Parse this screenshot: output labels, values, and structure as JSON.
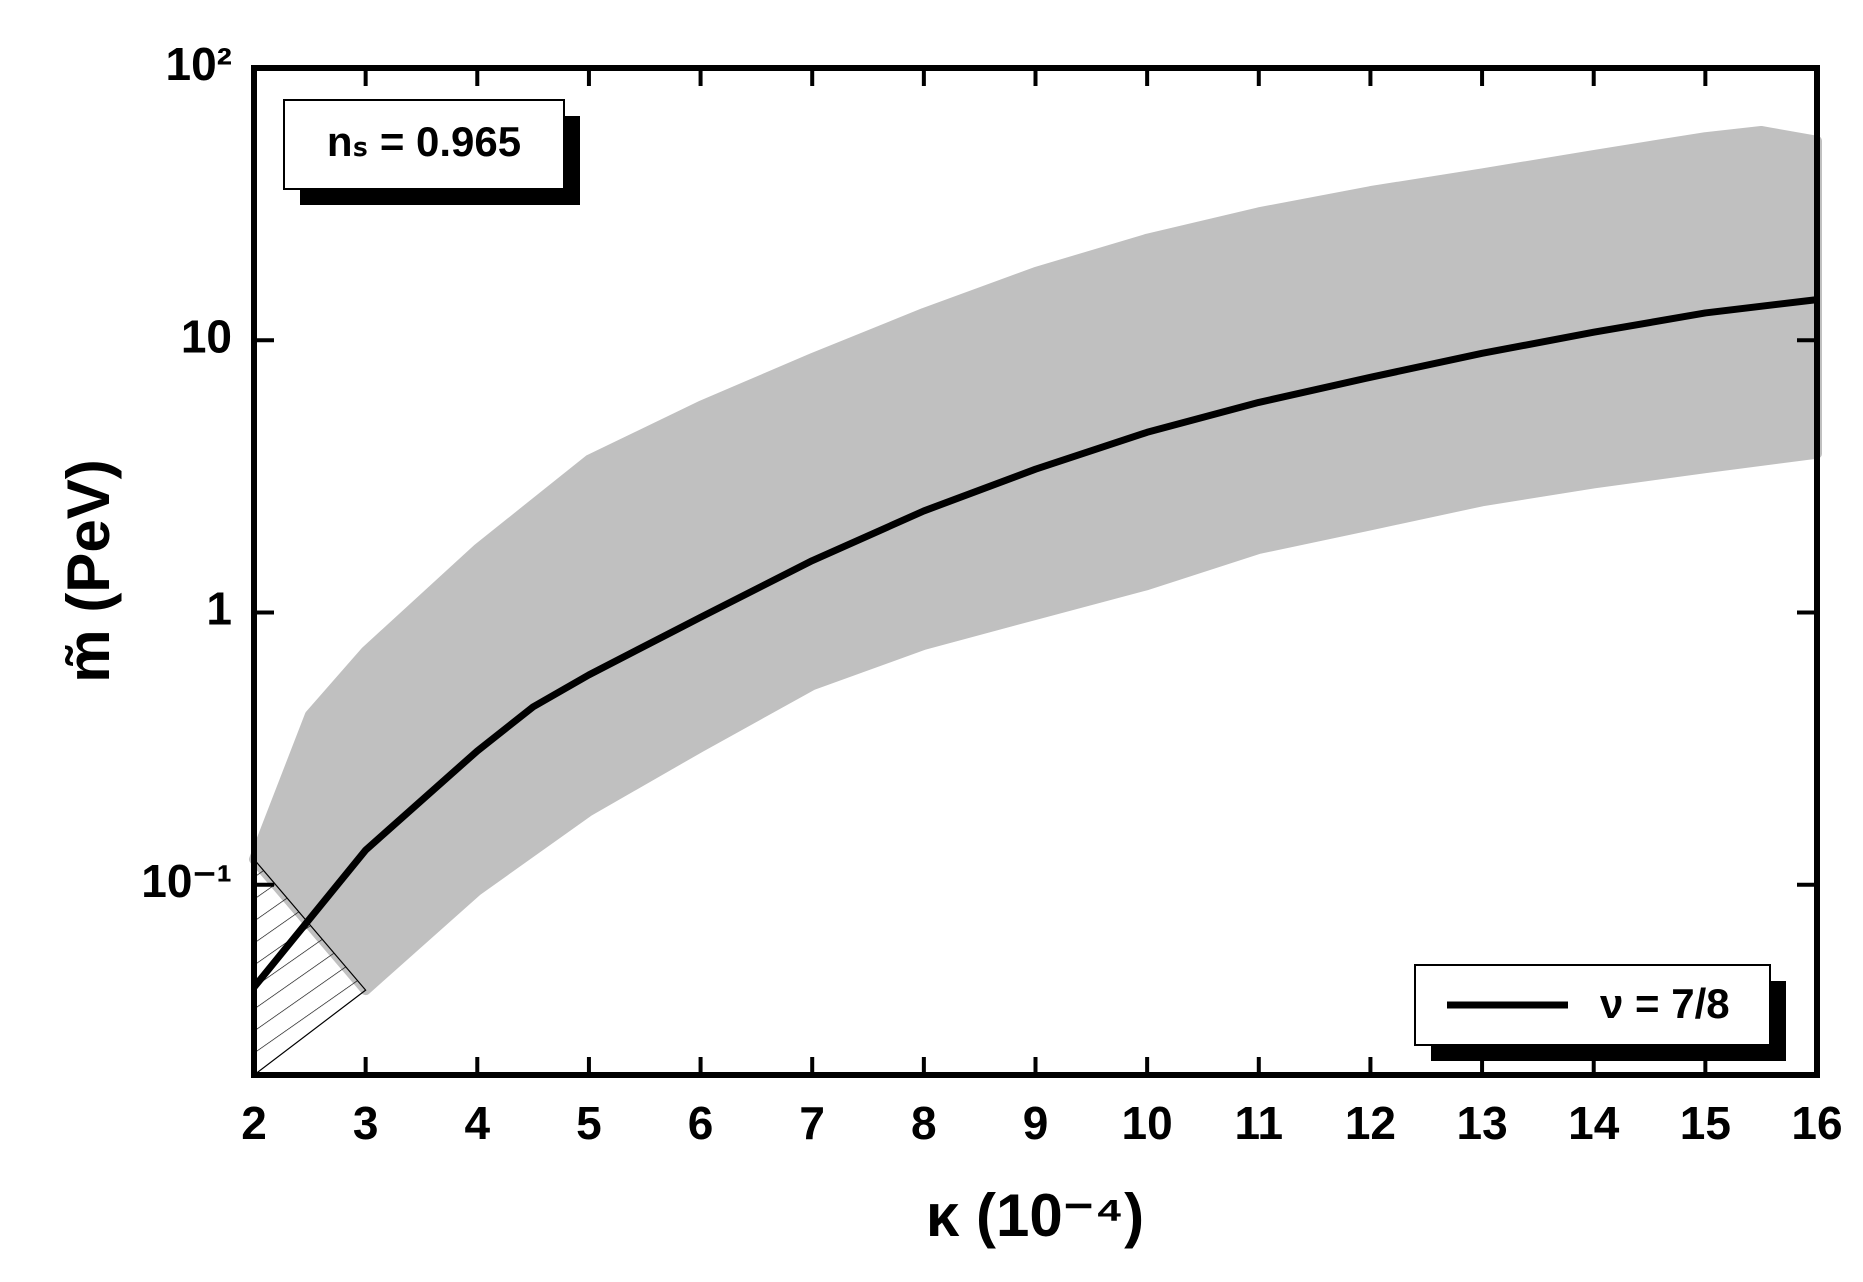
{
  "chart_data": {
    "type": "line",
    "annotation": "nₛ = 0.965",
    "xlabel": "κ (10⁻⁴)",
    "ylabel": "m̃ (PeV)",
    "xlim": [
      2,
      16
    ],
    "xticks": [
      2,
      3,
      4,
      5,
      6,
      7,
      8,
      9,
      10,
      11,
      12,
      13,
      14,
      15,
      16
    ],
    "ylim": [
      0.02,
      100
    ],
    "yticks": [
      {
        "value": 0.1,
        "label": "10⁻¹"
      },
      1,
      10,
      {
        "value": 100,
        "label": "10²"
      }
    ],
    "yscale": "log",
    "legend": "lower right",
    "series": [
      {
        "name": "ν = 7/8",
        "color": "#000000",
        "x": [
          2,
          3,
          4,
          4.5,
          5,
          6,
          7,
          8,
          9,
          10,
          11,
          12,
          13,
          14,
          15,
          16
        ],
        "values": [
          0.042,
          0.134,
          0.31,
          0.45,
          0.59,
          0.96,
          1.55,
          2.36,
          3.36,
          4.59,
          5.91,
          7.31,
          8.95,
          10.7,
          12.6,
          14.1
        ]
      }
    ],
    "band": {
      "color": "#c0c0c0",
      "x_upper": [
        2,
        2.5,
        3,
        4,
        5,
        6,
        7,
        8,
        9,
        10,
        11,
        12,
        13,
        14,
        15,
        15.5,
        16
      ],
      "upper": [
        0.124,
        0.42,
        0.72,
        1.71,
        3.64,
        5.74,
        8.6,
        12.6,
        17.8,
        23.6,
        29.5,
        35.3,
        41,
        47.9,
        55.7,
        58.7,
        54
      ],
      "x_lower": [
        2,
        3,
        4,
        5,
        6,
        7,
        8,
        9,
        10,
        11,
        12,
        13,
        14,
        15,
        16
      ],
      "lower": [
        0.124,
        0.041,
        0.095,
        0.186,
        0.32,
        0.54,
        0.76,
        0.98,
        1.26,
        1.71,
        2.09,
        2.56,
        2.98,
        3.39,
        3.83
      ]
    },
    "hatched_region": {
      "x": [
        2,
        3,
        2
      ],
      "y": [
        0.124,
        0.041,
        0.02
      ]
    }
  }
}
